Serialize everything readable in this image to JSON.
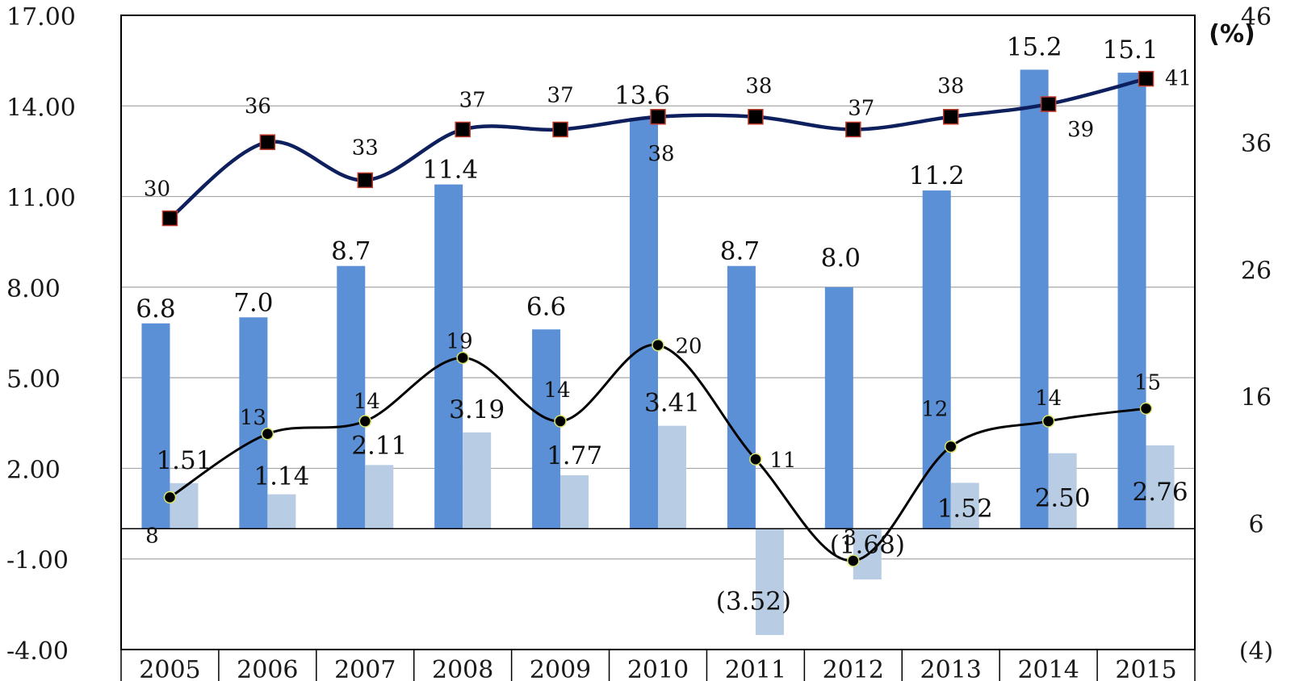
{
  "chart_data": {
    "type": "bar",
    "categories": [
      "2005",
      "2006",
      "2007",
      "2008",
      "2009",
      "2010",
      "2011",
      "2012",
      "2013",
      "2014",
      "2015"
    ],
    "left_axis": {
      "ylim": [
        -4,
        17
      ],
      "ticks": [
        "17.00",
        "14.00",
        "11.00",
        "8.00",
        "5.00",
        "2.00",
        "-1.00",
        "-4.00"
      ],
      "tick_values": [
        17,
        14,
        11,
        8,
        5,
        2,
        -1,
        -4
      ]
    },
    "right_axis": {
      "unit": "(%)",
      "ylim": [
        -4,
        46
      ],
      "ticks": [
        "46",
        "36",
        "26",
        "16",
        "6",
        "(4)"
      ],
      "tick_values": [
        46,
        36,
        26,
        16,
        6,
        -4
      ]
    },
    "series": [
      {
        "kind": "bar",
        "axis": "left",
        "color": "#5b8fd6",
        "values": [
          6.8,
          7.0,
          8.7,
          11.4,
          6.6,
          13.6,
          8.7,
          8.0,
          11.2,
          15.2,
          15.1
        ],
        "labels": [
          "6.8",
          "7.0",
          "8.7",
          "11.4",
          "6.6",
          "13.6",
          "8.7",
          "8.0",
          "11.2",
          "15.2",
          "15.1"
        ]
      },
      {
        "kind": "bar",
        "axis": "left",
        "color": "#b8cce4",
        "values": [
          1.51,
          1.14,
          2.11,
          3.19,
          1.77,
          3.41,
          -3.52,
          -1.68,
          1.52,
          2.5,
          2.76
        ],
        "labels": [
          "1.51",
          "1.14",
          "2.11",
          "3.19",
          "1.77",
          "3.41",
          "(3.52)",
          "(1.68)",
          "1.52",
          "2.50",
          "2.76"
        ]
      },
      {
        "kind": "line",
        "axis": "right",
        "color": "#0d1f5c",
        "marker": "square",
        "values": [
          30,
          36,
          33,
          37,
          37,
          38,
          38,
          37,
          38,
          39,
          41
        ],
        "labels": [
          "30",
          "36",
          "33",
          "37",
          "37",
          "38",
          "38",
          "37",
          "38",
          "39",
          "41"
        ]
      },
      {
        "kind": "line",
        "axis": "right",
        "color": "#000000",
        "marker": "circle",
        "values": [
          8,
          13,
          14,
          19,
          14,
          20,
          11,
          3,
          12,
          14,
          15
        ],
        "labels": [
          "8",
          "13",
          "14",
          "19",
          "14",
          "20",
          "11",
          "3",
          "12",
          "14",
          "15"
        ]
      }
    ],
    "grid": true
  }
}
